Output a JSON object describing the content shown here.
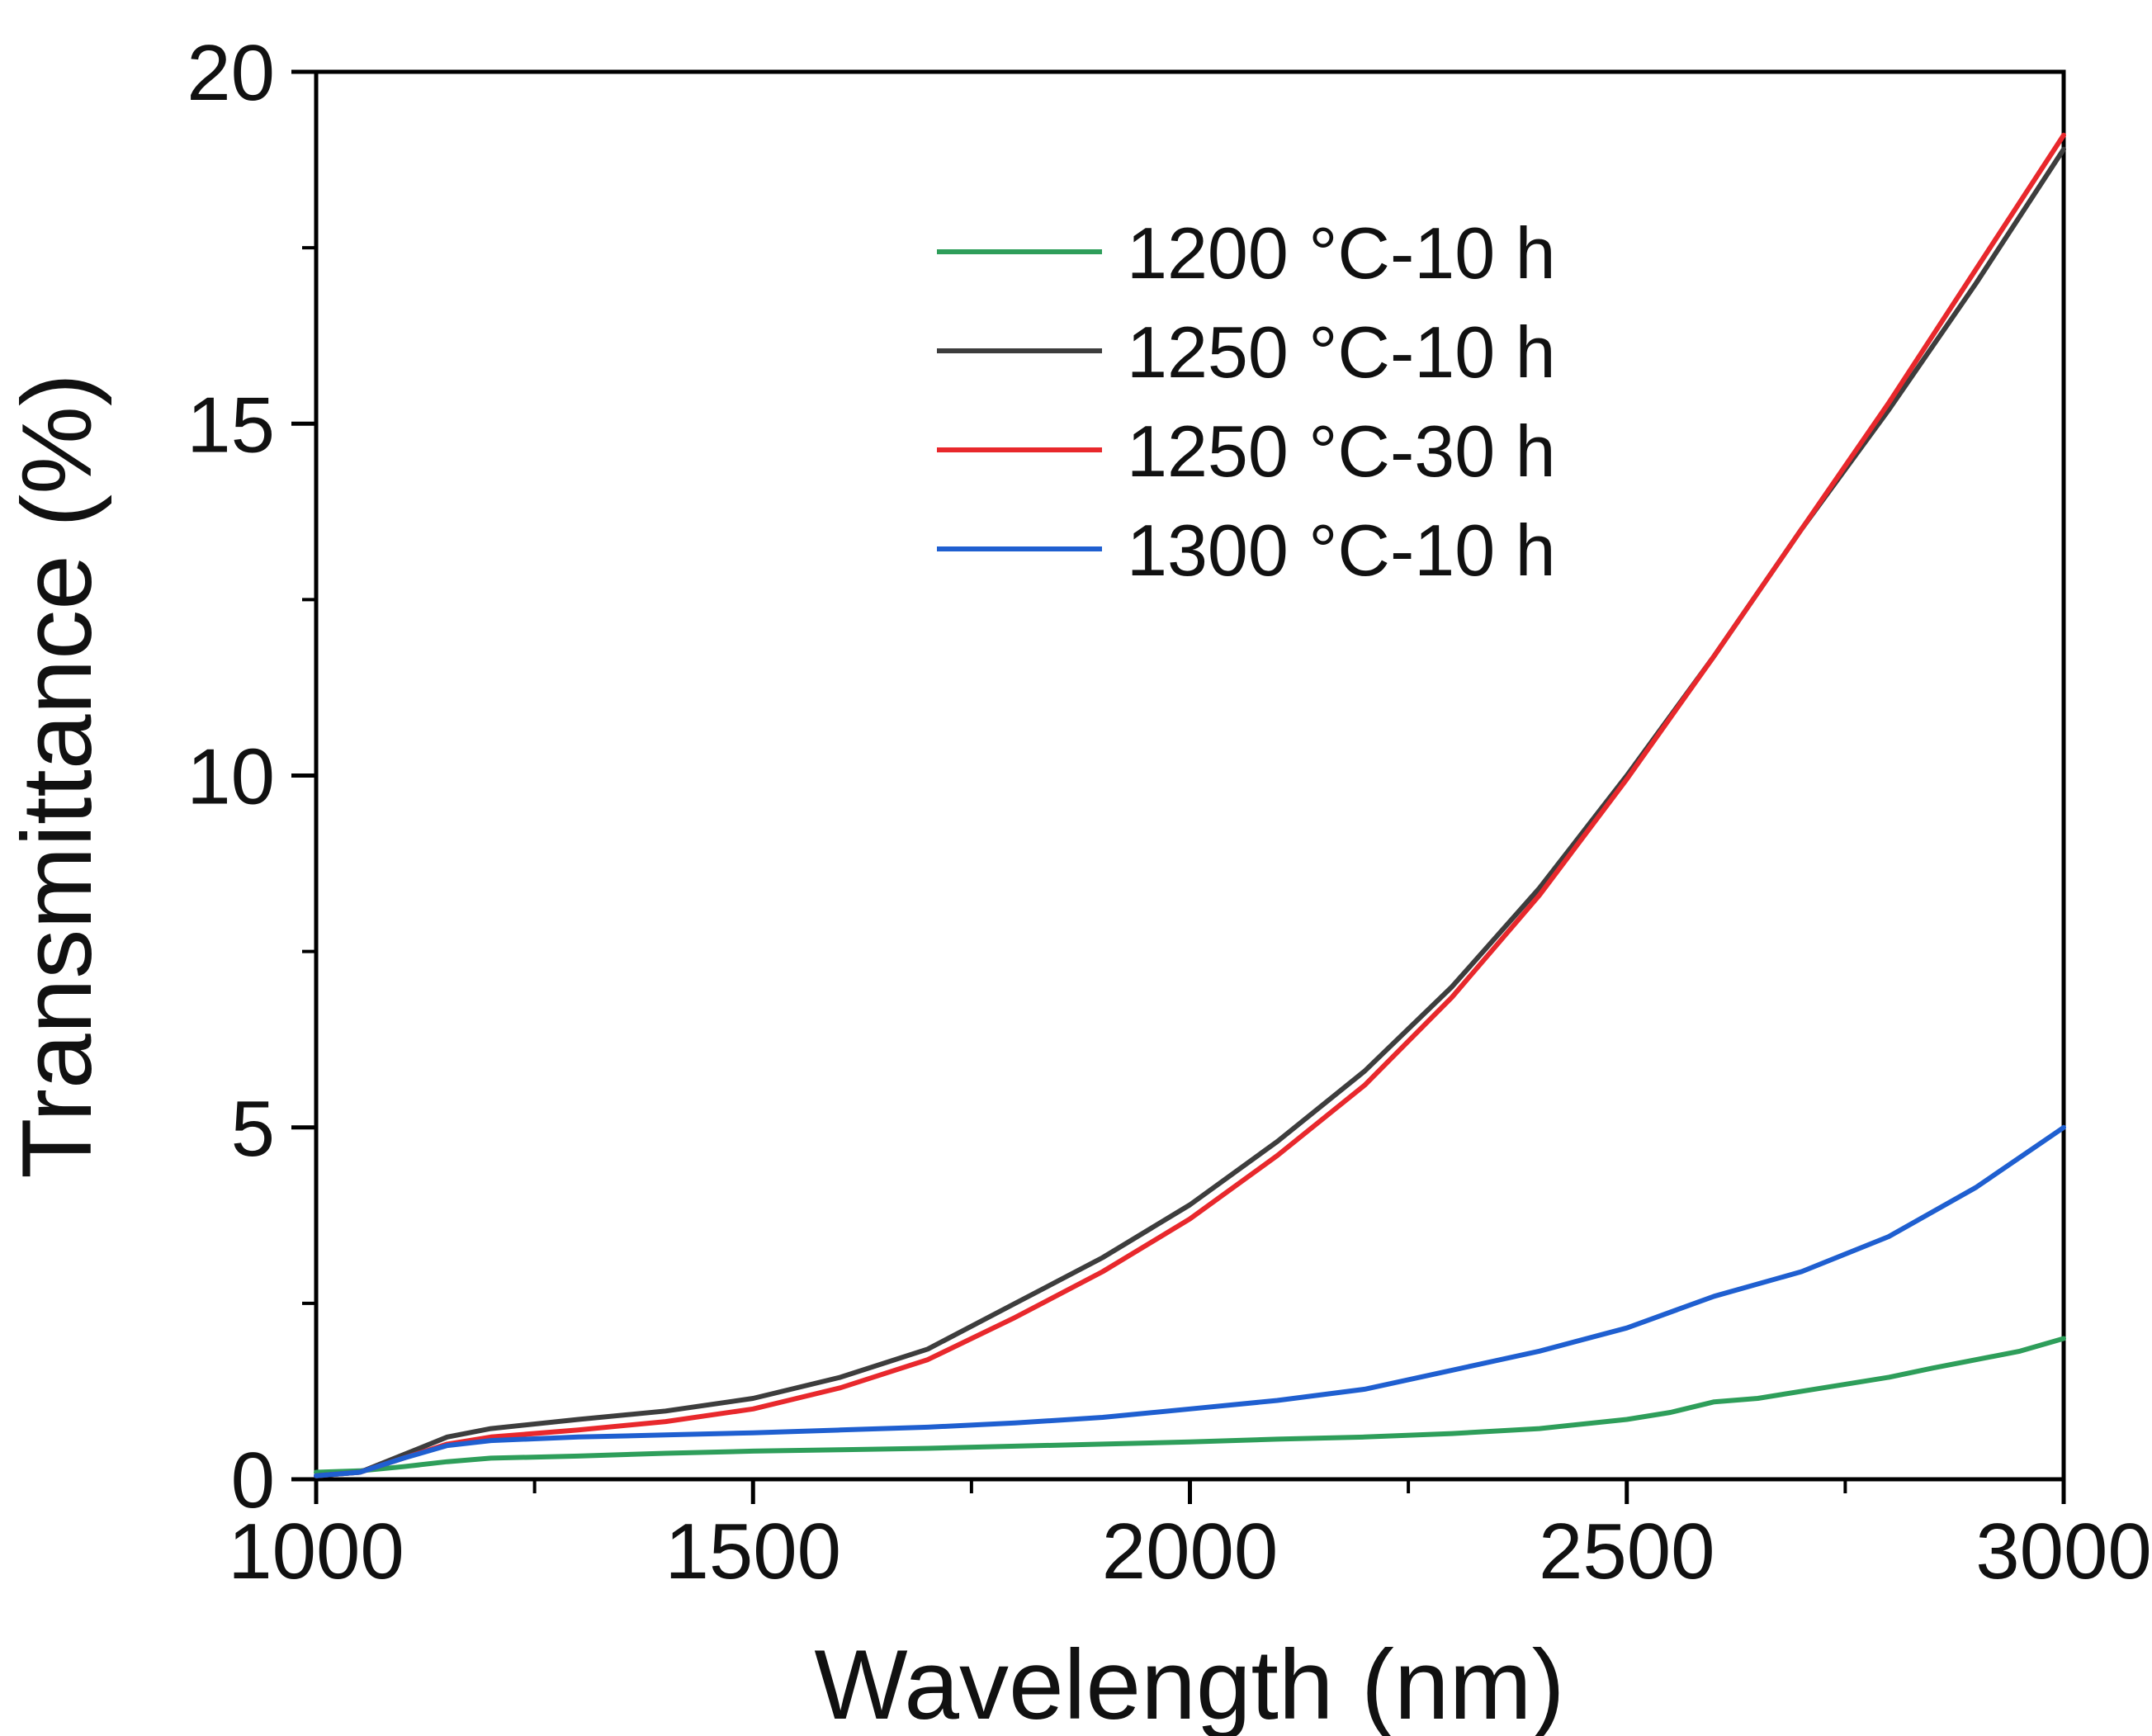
{
  "chart_data": {
    "type": "line",
    "title": "",
    "xlabel": "Wavelength (nm)",
    "ylabel": "Transmittance (%)",
    "xlim": [
      1000,
      3000
    ],
    "ylim": [
      0,
      20
    ],
    "xticks": [
      1000,
      1500,
      2000,
      2500,
      3000
    ],
    "yticks": [
      0,
      5,
      10,
      15,
      20
    ],
    "xticks_minor": [
      1250,
      1750,
      2250,
      2750
    ],
    "yticks_minor": [
      2.5,
      7.5,
      12.5,
      17.5
    ],
    "grid": false,
    "legend_position": "top-center",
    "series": [
      {
        "name": "1200 °C-10 h",
        "color": "#2e9e5a",
        "x": [
          1000,
          1050,
          1100,
          1150,
          1200,
          1300,
          1400,
          1500,
          1600,
          1700,
          1800,
          1900,
          2000,
          2100,
          2200,
          2300,
          2400,
          2500,
          2550,
          2600,
          2650,
          2700,
          2750,
          2800,
          2850,
          2900,
          2950,
          3000
        ],
        "y": [
          0.1,
          0.12,
          0.18,
          0.25,
          0.3,
          0.33,
          0.37,
          0.4,
          0.42,
          0.44,
          0.47,
          0.5,
          0.53,
          0.57,
          0.6,
          0.65,
          0.72,
          0.85,
          0.95,
          1.1,
          1.15,
          1.25,
          1.35,
          1.45,
          1.58,
          1.7,
          1.82,
          2.0
        ]
      },
      {
        "name": "1250 °C-10 h",
        "color": "#3d3d3d",
        "x": [
          1000,
          1050,
          1100,
          1150,
          1200,
          1300,
          1400,
          1500,
          1600,
          1700,
          1800,
          1900,
          2000,
          2100,
          2200,
          2300,
          2400,
          2500,
          2600,
          2700,
          2800,
          2900,
          3000
        ],
        "y": [
          0.05,
          0.1,
          0.35,
          0.6,
          0.72,
          0.85,
          0.97,
          1.15,
          1.45,
          1.85,
          2.5,
          3.15,
          3.9,
          4.8,
          5.8,
          7.0,
          8.4,
          10.0,
          11.7,
          13.5,
          15.2,
          17.0,
          18.9
        ]
      },
      {
        "name": "1250 °C-30 h",
        "color": "#e8282c",
        "x": [
          1000,
          1050,
          1100,
          1150,
          1200,
          1300,
          1400,
          1500,
          1600,
          1700,
          1800,
          1900,
          2000,
          2100,
          2200,
          2300,
          2400,
          2500,
          2600,
          2700,
          2800,
          2900,
          3000
        ],
        "y": [
          0.05,
          0.1,
          0.3,
          0.5,
          0.6,
          0.7,
          0.82,
          1.0,
          1.3,
          1.7,
          2.3,
          2.95,
          3.7,
          4.6,
          5.6,
          6.85,
          8.3,
          9.95,
          11.7,
          13.5,
          15.3,
          17.2,
          19.1
        ]
      },
      {
        "name": "1300 °C-10 h",
        "color": "#1f5fd0",
        "x": [
          1000,
          1050,
          1100,
          1150,
          1200,
          1300,
          1400,
          1500,
          1600,
          1700,
          1800,
          1900,
          2000,
          2100,
          2200,
          2300,
          2400,
          2500,
          2600,
          2700,
          2800,
          2900,
          3000
        ],
        "y": [
          0.05,
          0.1,
          0.3,
          0.48,
          0.55,
          0.6,
          0.63,
          0.66,
          0.7,
          0.74,
          0.8,
          0.88,
          1.0,
          1.12,
          1.28,
          1.55,
          1.82,
          2.15,
          2.6,
          2.95,
          3.45,
          4.15,
          5.0
        ]
      }
    ]
  }
}
